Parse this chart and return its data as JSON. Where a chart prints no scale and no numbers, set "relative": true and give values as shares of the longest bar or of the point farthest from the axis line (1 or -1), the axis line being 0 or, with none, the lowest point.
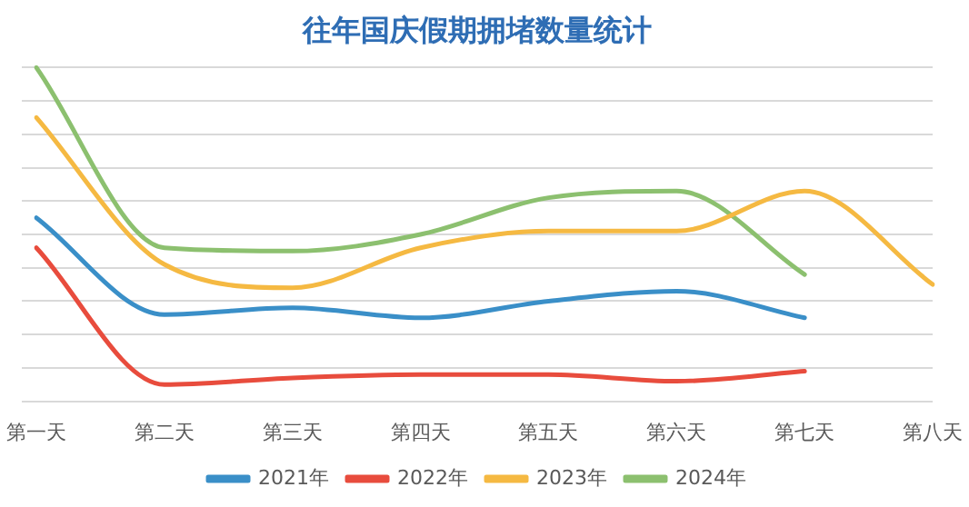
{
  "chart_data": {
    "type": "line",
    "title": "往年国庆假期拥堵数量统计",
    "relative": true,
    "grid": "y",
    "legend": "bottom",
    "marker": "none",
    "line_style": "solid",
    "categories": [
      "第一天",
      "第二天",
      "第三天",
      "第四天",
      "第五天",
      "第六天",
      "第七天",
      "第八天"
    ],
    "series": [
      {
        "name": "2021年",
        "color": "#3a8fc8",
        "values": [
          0.55,
          0.26,
          0.28,
          0.25,
          0.3,
          0.33,
          0.25,
          null
        ]
      },
      {
        "name": "2022年",
        "color": "#e84c3d",
        "values": [
          0.46,
          0.05,
          0.07,
          0.08,
          0.08,
          0.06,
          0.09,
          null
        ]
      },
      {
        "name": "2023年",
        "color": "#f5b942",
        "values": [
          0.85,
          0.41,
          0.34,
          0.46,
          0.51,
          0.51,
          0.63,
          0.35
        ]
      },
      {
        "name": "2024年",
        "color": "#8cc06f",
        "values": [
          1,
          0.46,
          0.45,
          0.5,
          0.61,
          0.63,
          0.38,
          null
        ]
      }
    ]
  }
}
